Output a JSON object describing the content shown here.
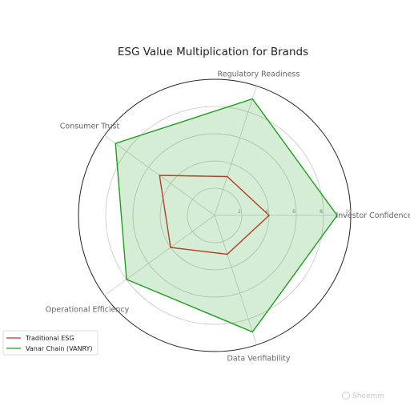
{
  "chart_data": {
    "type": "radar",
    "title": "ESG Value Multiplication for Brands",
    "axes": [
      "Investor Confidence",
      "Regulatory Readiness",
      "Consumer Trust",
      "Operational Efficiency",
      "Data Verifiability"
    ],
    "rlim": [
      0,
      10
    ],
    "rticks": [
      2,
      4,
      6,
      8,
      10
    ],
    "grid": true,
    "legend_position": "bottom-left",
    "series": [
      {
        "name": "Traditional ESG",
        "values": [
          4,
          3,
          5,
          4,
          3
        ],
        "color": "#d62728",
        "fill": "none"
      },
      {
        "name": "Vanar Chain (VANRY)",
        "values": [
          9,
          9,
          9,
          8,
          9
        ],
        "color": "#1f9e1f",
        "fill": "#2ca02c"
      }
    ]
  },
  "watermark": "Sheemm",
  "colors": {
    "grid": "#c6c6c6",
    "outer_circle": "#222222",
    "spoke": "#cccccc"
  }
}
